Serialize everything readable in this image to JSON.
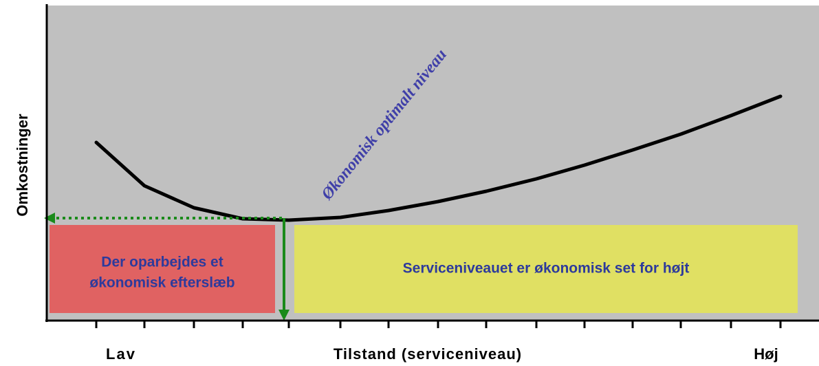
{
  "y_axis_label": "Omkostninger",
  "x_axis_label": "Tilstand (serviceniveau)",
  "x_low_label": "Lav",
  "x_high_label": "Høj",
  "optimum_label": "Økonomisk optimalt niveau",
  "left_box": {
    "lines": [
      "Der oparbejdes et",
      "økonomisk efterslæb"
    ]
  },
  "right_box": {
    "text": "Serviceniveauet er økonomisk set for højt"
  }
}
